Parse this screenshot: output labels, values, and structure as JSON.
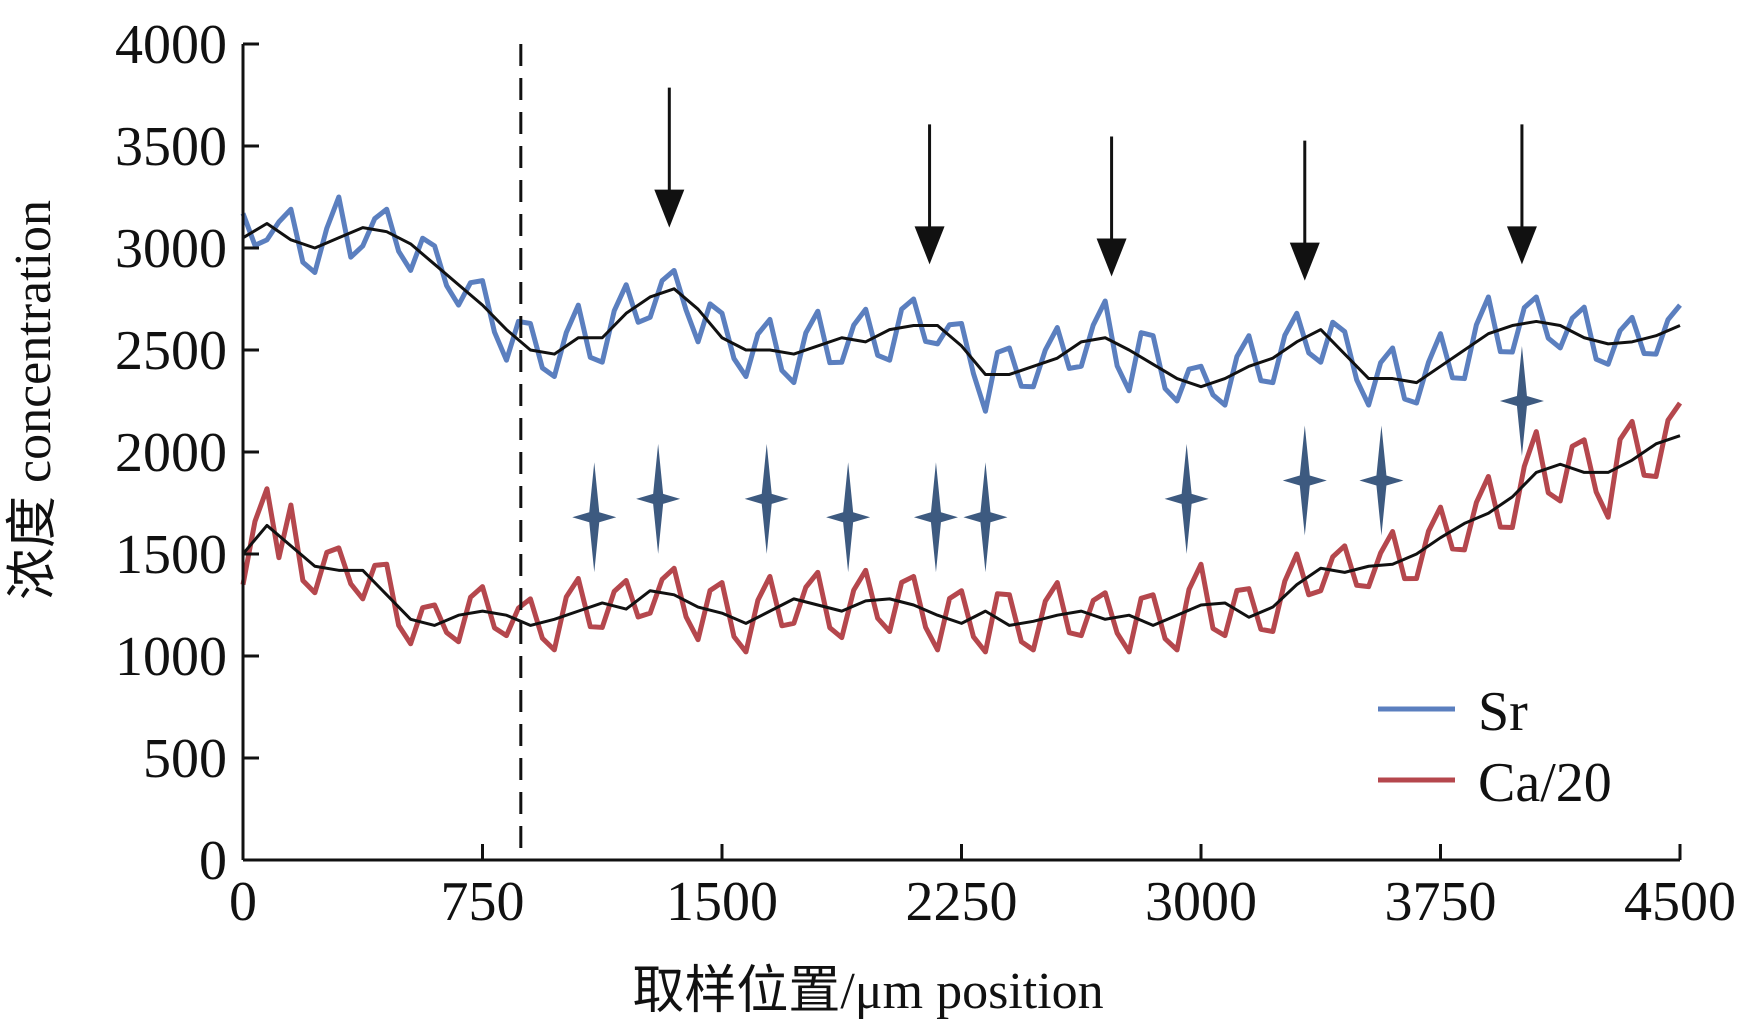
{
  "chart_data": {
    "type": "line",
    "xlabel": "取样位置/μm position",
    "ylabel": "浓度 concentration",
    "xlim": [
      0,
      4500
    ],
    "ylim": [
      0,
      4000
    ],
    "x_ticks": [
      "0",
      "750",
      "1500",
      "2250",
      "3000",
      "3750",
      "4500"
    ],
    "y_ticks": [
      "0",
      "500",
      "1000",
      "1500",
      "2000",
      "2500",
      "3000",
      "3500",
      "4000"
    ],
    "grid": false,
    "legend_position": "bottom-right",
    "dashed_vline_x": 870,
    "series": [
      {
        "name": "Sr",
        "color": "#5b7fbf",
        "smooth_color": "#111111",
        "x": [
          0,
          75,
          150,
          225,
          300,
          375,
          450,
          525,
          600,
          675,
          750,
          825,
          900,
          975,
          1050,
          1125,
          1200,
          1275,
          1350,
          1425,
          1500,
          1575,
          1650,
          1725,
          1800,
          1875,
          1950,
          2025,
          2100,
          2175,
          2250,
          2325,
          2400,
          2475,
          2550,
          2625,
          2700,
          2775,
          2850,
          2925,
          3000,
          3075,
          3150,
          3225,
          3300,
          3375,
          3450,
          3525,
          3600,
          3675,
          3750,
          3825,
          3900,
          3975,
          4050,
          4125,
          4200,
          4275,
          4350,
          4425,
          4500
        ],
        "smooth": [
          3050,
          3120,
          3040,
          3000,
          3050,
          3100,
          3080,
          3020,
          2920,
          2820,
          2720,
          2600,
          2500,
          2480,
          2560,
          2560,
          2680,
          2760,
          2800,
          2700,
          2560,
          2500,
          2500,
          2480,
          2520,
          2560,
          2540,
          2600,
          2620,
          2620,
          2520,
          2380,
          2380,
          2420,
          2460,
          2540,
          2560,
          2500,
          2430,
          2360,
          2320,
          2360,
          2420,
          2460,
          2540,
          2600,
          2480,
          2360,
          2360,
          2340,
          2420,
          2500,
          2580,
          2620,
          2640,
          2620,
          2560,
          2530,
          2540,
          2570,
          2620
        ],
        "noise": [
          120,
          -80,
          150,
          -120,
          200,
          -90,
          110,
          -130,
          90,
          -100,
          120,
          -150,
          130,
          -110,
          160,
          -120,
          140,
          -100,
          90,
          -160,
          120,
          -130,
          150,
          -140,
          170,
          -120,
          160,
          -150,
          130,
          -90,
          110,
          -180,
          130,
          -100,
          150,
          -120,
          180,
          -200,
          140,
          -110,
          100,
          -130,
          150,
          -120,
          140,
          -160,
          110,
          -130,
          150,
          -100,
          160,
          -140,
          180,
          -130,
          120,
          -110,
          150,
          -100,
          120,
          -90,
          100
        ]
      },
      {
        "name": "Ca/20",
        "color": "#b5474d",
        "smooth_color": "#111111",
        "x": [
          0,
          75,
          150,
          225,
          300,
          375,
          450,
          525,
          600,
          675,
          750,
          825,
          900,
          975,
          1050,
          1125,
          1200,
          1275,
          1350,
          1425,
          1500,
          1575,
          1650,
          1725,
          1800,
          1875,
          1950,
          2025,
          2100,
          2175,
          2250,
          2325,
          2400,
          2475,
          2550,
          2625,
          2700,
          2775,
          2850,
          2925,
          3000,
          3075,
          3150,
          3225,
          3300,
          3375,
          3450,
          3525,
          3600,
          3675,
          3750,
          3825,
          3900,
          3975,
          4050,
          4125,
          4200,
          4275,
          4350,
          4425,
          4500
        ],
        "smooth": [
          1500,
          1640,
          1540,
          1440,
          1420,
          1420,
          1300,
          1180,
          1150,
          1200,
          1220,
          1200,
          1150,
          1180,
          1220,
          1260,
          1230,
          1320,
          1300,
          1240,
          1210,
          1160,
          1220,
          1280,
          1250,
          1220,
          1270,
          1280,
          1250,
          1200,
          1160,
          1220,
          1150,
          1170,
          1200,
          1220,
          1180,
          1200,
          1150,
          1200,
          1250,
          1260,
          1190,
          1240,
          1350,
          1430,
          1410,
          1440,
          1450,
          1500,
          1580,
          1650,
          1700,
          1780,
          1900,
          1940,
          1900,
          1900,
          1960,
          2040,
          2080
        ],
        "noise": [
          -150,
          180,
          200,
          -130,
          110,
          -140,
          150,
          -120,
          100,
          -130,
          120,
          -100,
          130,
          -150,
          160,
          -120,
          140,
          -110,
          130,
          -160,
          150,
          -140,
          170,
          -120,
          160,
          -130,
          150,
          -160,
          140,
          -170,
          160,
          -200,
          150,
          -140,
          160,
          -120,
          130,
          -180,
          150,
          -170,
          200,
          -160,
          140,
          -120,
          150,
          -110,
          130,
          -100,
          160,
          -120,
          150,
          -130,
          180,
          -150,
          200,
          -180,
          160,
          -220,
          190,
          -160,
          160
        ]
      }
    ],
    "arrow_x": [
      1335,
      2150,
      2720,
      3325,
      4005
    ],
    "star_markers": [
      {
        "x": 1100,
        "y": 1680
      },
      {
        "x": 1300,
        "y": 1770
      },
      {
        "x": 1640,
        "y": 1770
      },
      {
        "x": 1895,
        "y": 1680
      },
      {
        "x": 2170,
        "y": 1680
      },
      {
        "x": 2325,
        "y": 1680
      },
      {
        "x": 2955,
        "y": 1770
      },
      {
        "x": 3325,
        "y": 1860
      },
      {
        "x": 3565,
        "y": 1860
      },
      {
        "x": 4005,
        "y": 2250
      }
    ],
    "star_color": "#3d5a80"
  }
}
